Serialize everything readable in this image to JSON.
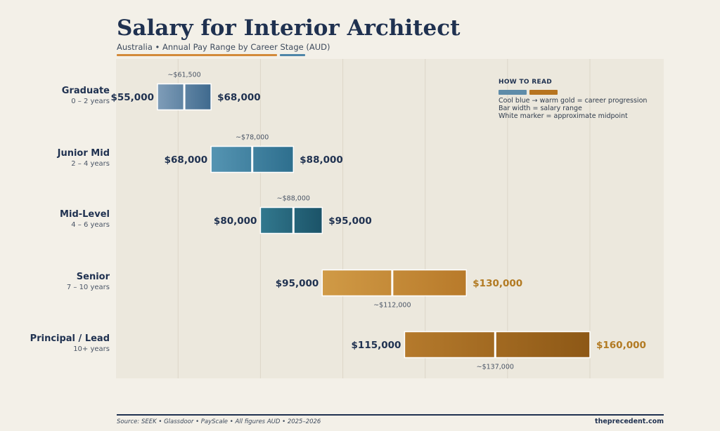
{
  "header": {
    "title": "Salary for Interior Architect",
    "subtitle": "Australia • Annual Pay Range by Career Stage (AUD)"
  },
  "legend": {
    "title": "HOW TO READ",
    "line1": "Cool blue → warm gold = career progression",
    "line2": "Bar width = salary range",
    "line3": "White marker = approximate midpoint"
  },
  "footer": {
    "source": "Source: SEEK • Glassdoor • PayScale • All figures AUD • 2025–2026",
    "brand": "theprecedent.com"
  },
  "colors": {
    "navy": "#1f3150",
    "accent_orange": "#d38a3a",
    "accent_blue": "#4f86a8",
    "legend_blue": "#5f8ca9",
    "legend_gold": "#b7741f"
  },
  "chart_data": {
    "type": "bar",
    "orientation": "horizontal-range",
    "title": "Salary for Interior Architect",
    "subtitle": "Australia • Annual Pay Range by Career Stage (AUD)",
    "xlim": [
      40000,
      175000
    ],
    "grid": true,
    "legend_position": "top-right",
    "categories": [
      {
        "label": "Graduate",
        "years": "0 – 2 years",
        "min": 55000,
        "max": 68000,
        "mid": 61500,
        "min_label": "$55,000",
        "max_label": "$68,000",
        "mid_label": "~$61,500",
        "mid_label_pos": "above",
        "color_start": "#7f9db8",
        "color_end": "#3f6a8e",
        "max_label_color": "#1f3150"
      },
      {
        "label": "Junior Mid",
        "years": "2 – 4 years",
        "min": 68000,
        "max": 88000,
        "mid": 78000,
        "min_label": "$68,000",
        "max_label": "$88,000",
        "mid_label": "~$78,000",
        "mid_label_pos": "above",
        "color_start": "#5594b2",
        "color_end": "#2e6f8e",
        "max_label_color": "#1f3150"
      },
      {
        "label": "Mid-Level",
        "years": "4 – 6 years",
        "min": 80000,
        "max": 95000,
        "mid": 88000,
        "min_label": "$80,000",
        "max_label": "$95,000",
        "mid_label": "~$88,000",
        "mid_label_pos": "above",
        "color_start": "#32788e",
        "color_end": "#1b5368",
        "max_label_color": "#1f3150"
      },
      {
        "label": "Senior",
        "years": "7 – 10 years",
        "min": 95000,
        "max": 130000,
        "mid": 112000,
        "min_label": "$95,000",
        "max_label": "$130,000",
        "mid_label": "~$112,000",
        "mid_label_pos": "below",
        "color_start": "#d09a46",
        "color_end": "#b87a2a",
        "max_label_color": "#b27a22"
      },
      {
        "label": "Principal / Lead",
        "years": "10+ years",
        "min": 115000,
        "max": 160000,
        "mid": 137000,
        "min_label": "$115,000",
        "max_label": "$160,000",
        "mid_label": "~$137,000",
        "mid_label_pos": "below",
        "color_start": "#b57a2c",
        "color_end": "#8d5816",
        "max_label_color": "#b27a22"
      }
    ]
  }
}
